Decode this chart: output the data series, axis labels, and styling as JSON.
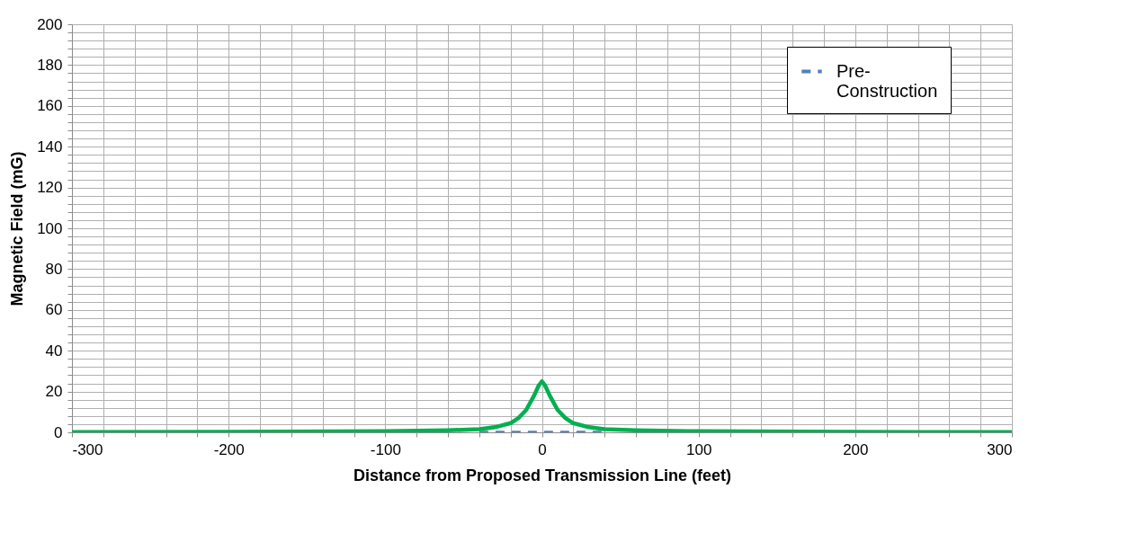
{
  "chart_data": {
    "type": "line",
    "xlabel": "Distance from Proposed Transmission Line (feet)",
    "ylabel": "Magnetic Field (mG)",
    "xlim": [
      -300,
      300
    ],
    "ylim": [
      0,
      200
    ],
    "xticks": [
      -300,
      {
        "value": -280,
        "label": null
      },
      {
        "value": -260,
        "label": null
      },
      {
        "value": -240,
        "label": null
      },
      {
        "value": -220,
        "label": null
      },
      -200,
      {
        "value": -180,
        "label": null
      },
      {
        "value": -160,
        "label": null
      },
      {
        "value": -140,
        "label": null
      },
      {
        "value": -120,
        "label": null
      },
      -100,
      {
        "value": -80,
        "label": null
      },
      {
        "value": -60,
        "label": null
      },
      {
        "value": -40,
        "label": null
      },
      {
        "value": -20,
        "label": null
      },
      0,
      {
        "value": 20,
        "label": null
      },
      {
        "value": 40,
        "label": null
      },
      {
        "value": 60,
        "label": null
      },
      {
        "value": 80,
        "label": null
      },
      100,
      {
        "value": 120,
        "label": null
      },
      {
        "value": 140,
        "label": null
      },
      {
        "value": 160,
        "label": null
      },
      {
        "value": 180,
        "label": null
      },
      200,
      {
        "value": 220,
        "label": null
      },
      {
        "value": 240,
        "label": null
      },
      {
        "value": 260,
        "label": null
      },
      {
        "value": 280,
        "label": null
      },
      300
    ],
    "yticks": [
      0,
      {
        "value": 4,
        "label": null
      },
      {
        "value": 8,
        "label": null
      },
      {
        "value": 12,
        "label": null
      },
      {
        "value": 16,
        "label": null
      },
      20,
      {
        "value": 24,
        "label": null
      },
      {
        "value": 28,
        "label": null
      },
      {
        "value": 32,
        "label": null
      },
      {
        "value": 36,
        "label": null
      },
      40,
      {
        "value": 44,
        "label": null
      },
      {
        "value": 48,
        "label": null
      },
      {
        "value": 52,
        "label": null
      },
      {
        "value": 56,
        "label": null
      },
      60,
      {
        "value": 64,
        "label": null
      },
      {
        "value": 68,
        "label": null
      },
      {
        "value": 72,
        "label": null
      },
      {
        "value": 76,
        "label": null
      },
      80,
      {
        "value": 84,
        "label": null
      },
      {
        "value": 88,
        "label": null
      },
      {
        "value": 92,
        "label": null
      },
      {
        "value": 96,
        "label": null
      },
      100,
      {
        "value": 104,
        "label": null
      },
      {
        "value": 108,
        "label": null
      },
      {
        "value": 112,
        "label": null
      },
      {
        "value": 116,
        "label": null
      },
      120,
      {
        "value": 124,
        "label": null
      },
      {
        "value": 128,
        "label": null
      },
      {
        "value": 132,
        "label": null
      },
      {
        "value": 136,
        "label": null
      },
      140,
      {
        "value": 144,
        "label": null
      },
      {
        "value": 148,
        "label": null
      },
      {
        "value": 152,
        "label": null
      },
      {
        "value": 156,
        "label": null
      },
      160,
      {
        "value": 164,
        "label": null
      },
      {
        "value": 168,
        "label": null
      },
      {
        "value": 172,
        "label": null
      },
      {
        "value": 176,
        "label": null
      },
      180,
      {
        "value": 184,
        "label": null
      },
      {
        "value": 188,
        "label": null
      },
      {
        "value": 192,
        "label": null
      },
      {
        "value": 196,
        "label": null
      },
      200
    ],
    "grid": true,
    "legend": "top right",
    "marker": "none",
    "series": [
      {
        "name": "Pre-Construction",
        "color": "#4f81bd",
        "line_style": "dashed",
        "x": [
          -40,
          -20,
          0,
          20,
          40
        ],
        "values": [
          0,
          0,
          0,
          0,
          0
        ]
      },
      {
        "color": "#00b050",
        "line_style": "solid",
        "x": [
          -300,
          -200,
          -100,
          -60,
          -40,
          -30,
          -20,
          -15,
          -10,
          -5,
          -2,
          0,
          2,
          5,
          10,
          15,
          20,
          30,
          40,
          60,
          100,
          200,
          300
        ],
        "values": [
          0.1,
          0.2,
          0.5,
          1,
          1.5,
          2.5,
          4.5,
          7,
          11,
          18,
          23,
          25,
          23,
          18,
          11,
          7,
          4.5,
          2.5,
          1.5,
          1,
          0.5,
          0.2,
          0.1
        ]
      }
    ]
  }
}
